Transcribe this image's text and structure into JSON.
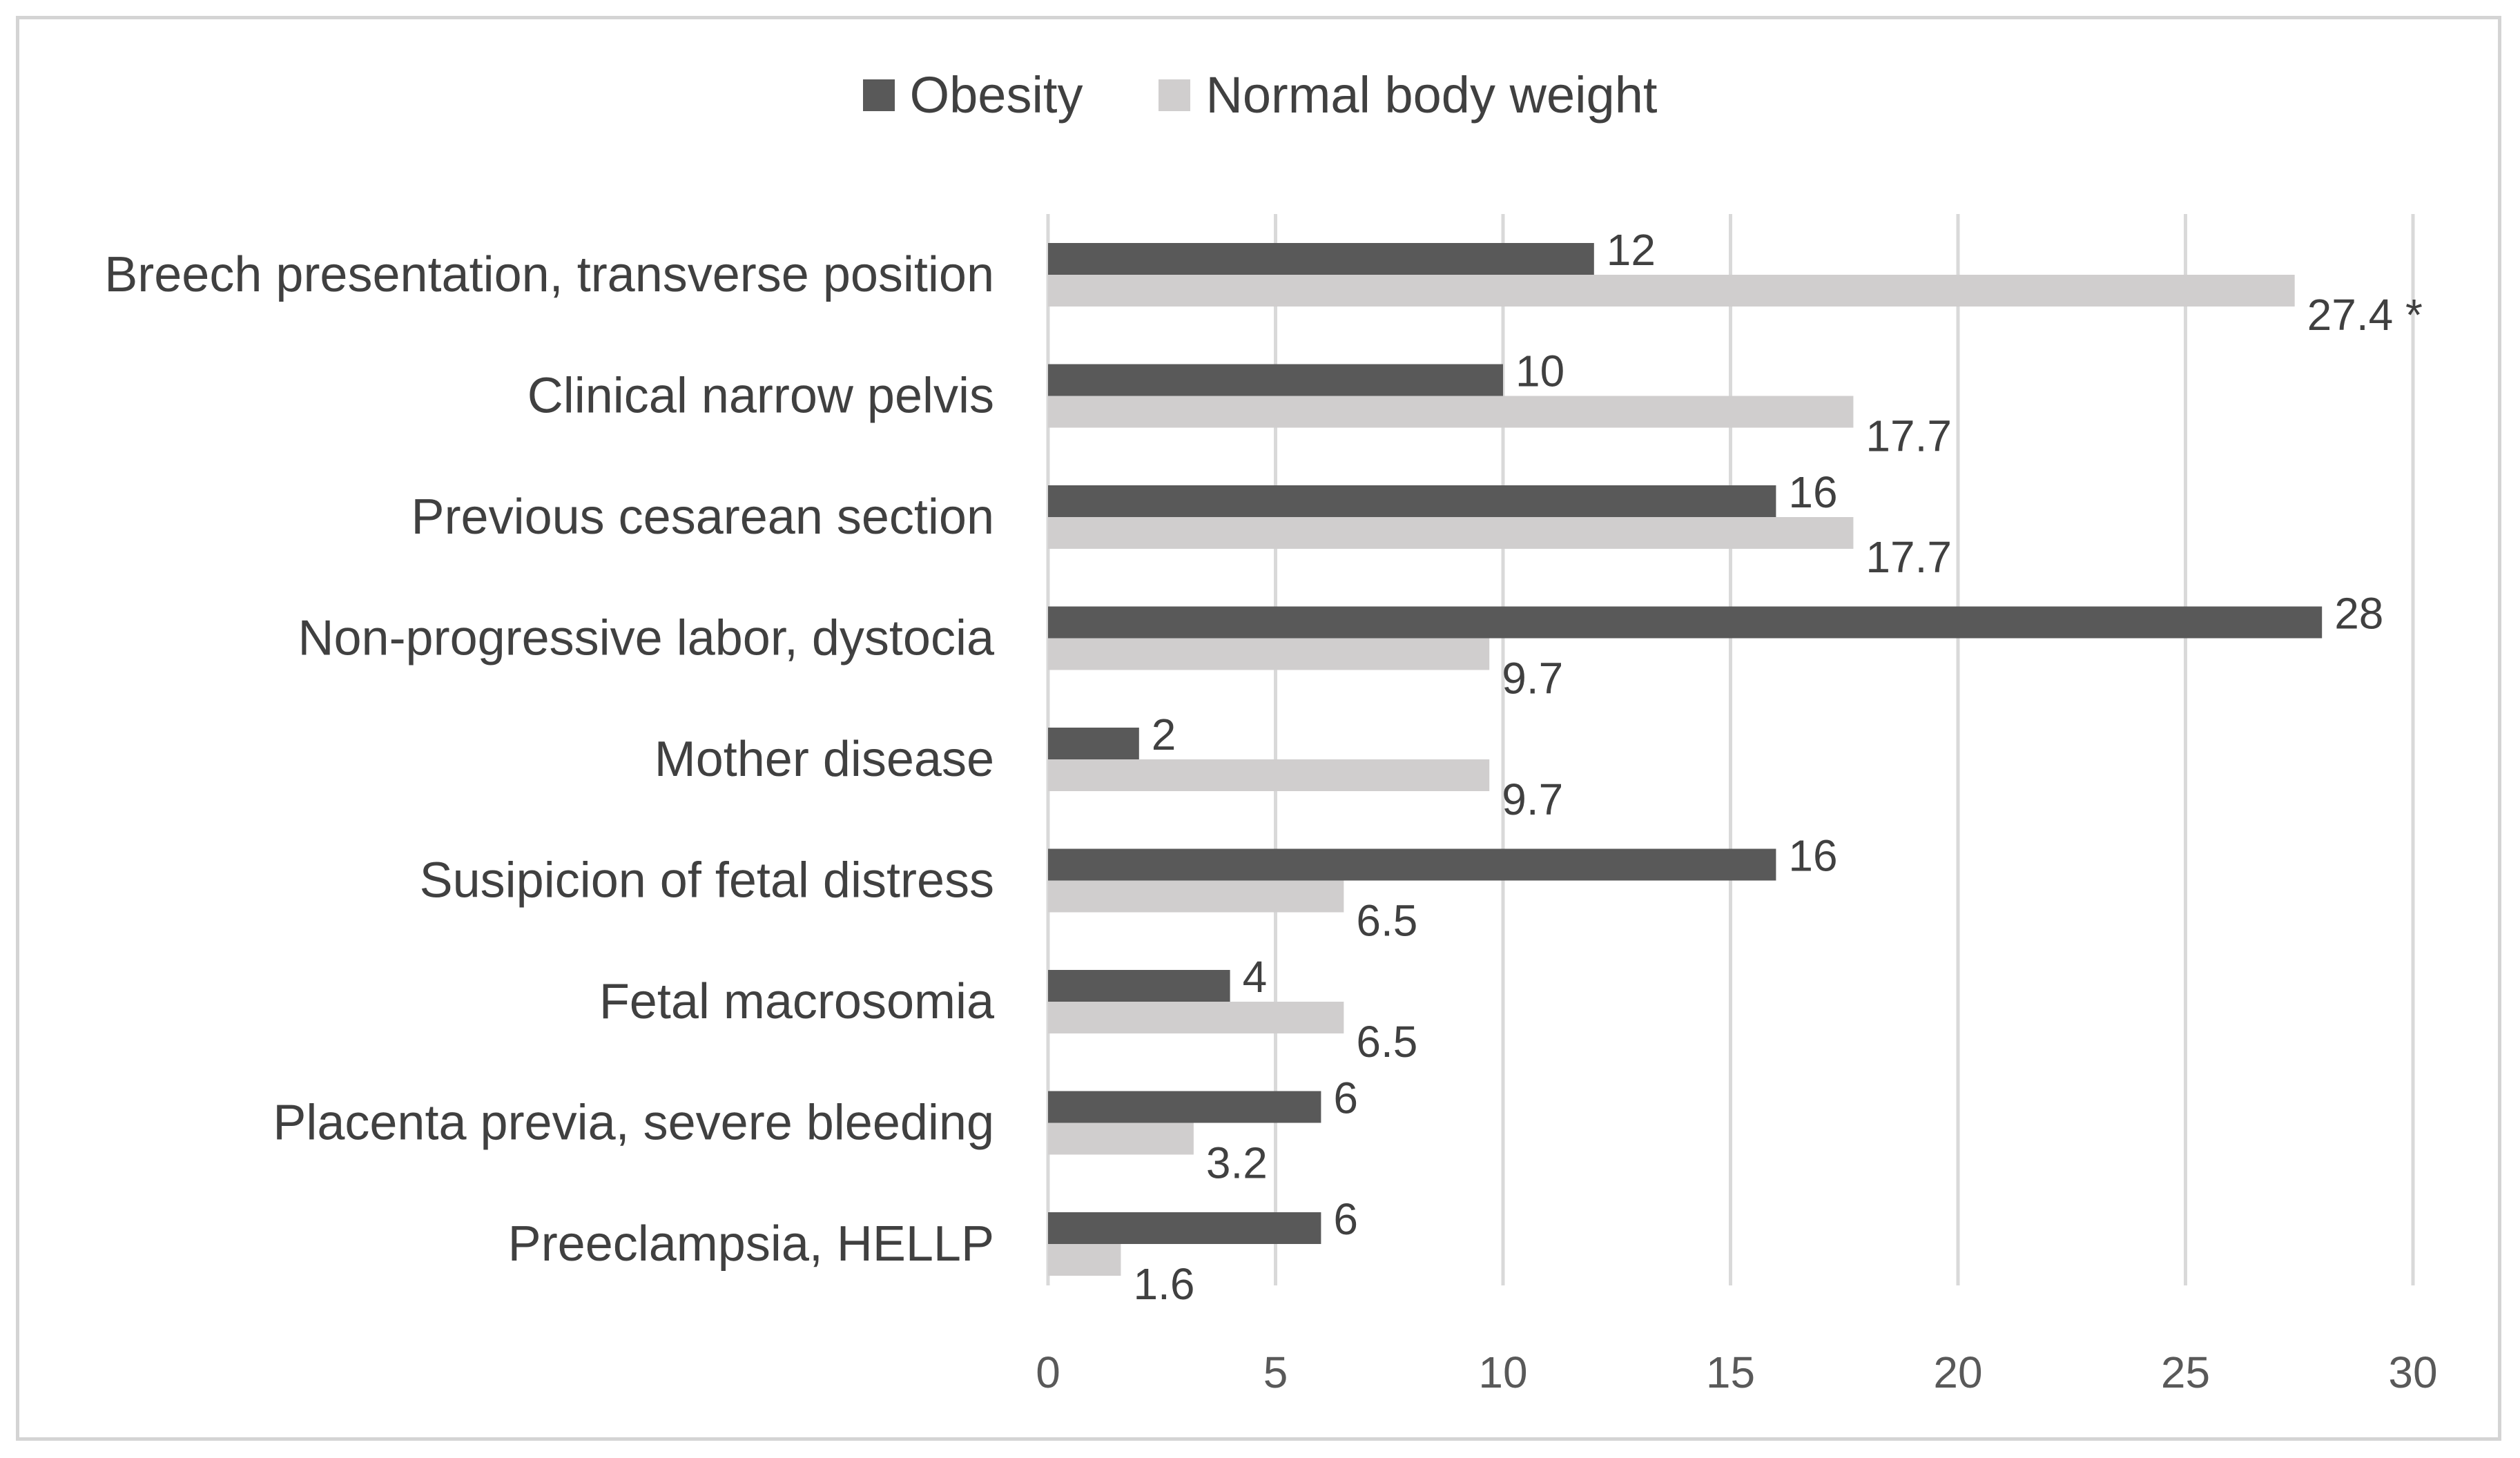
{
  "chart_data": {
    "type": "bar",
    "orientation": "horizontal",
    "title": "",
    "xlabel": "",
    "ylabel": "",
    "xlim": [
      0,
      30
    ],
    "ticks": [
      "0",
      "5",
      "10",
      "15",
      "20",
      "25",
      "30"
    ],
    "tick_values": [
      0,
      5,
      10,
      15,
      20,
      25,
      30
    ],
    "grid": true,
    "legend_position": "top-center",
    "categories": [
      "Breech presentation, transverse position",
      "Clinical narrow pelvis",
      "Previous cesarean section",
      "Non-progressive labor, dystocia",
      "Mother disease",
      "Susipicion of fetal distress",
      "Fetal macrosomia",
      "Placenta previa, severe bleeding",
      "Preeclampsia, HELLP"
    ],
    "series": [
      {
        "name": "Obesity",
        "color": "#595959",
        "values": [
          12,
          10,
          16,
          28,
          2,
          16,
          4,
          6,
          6
        ],
        "labels": [
          "12",
          "10",
          "16",
          "28",
          "2",
          "16",
          "4",
          "6",
          "6"
        ]
      },
      {
        "name": "Normal body weight",
        "color": "#d0cece",
        "values": [
          27.4,
          17.7,
          17.7,
          9.7,
          9.7,
          6.5,
          6.5,
          3.2,
          1.6
        ],
        "labels": [
          "27.4 *",
          "17.7",
          "17.7",
          "9.7",
          "9.7",
          "6.5",
          "6.5",
          "3.2",
          "1.6"
        ]
      }
    ]
  }
}
